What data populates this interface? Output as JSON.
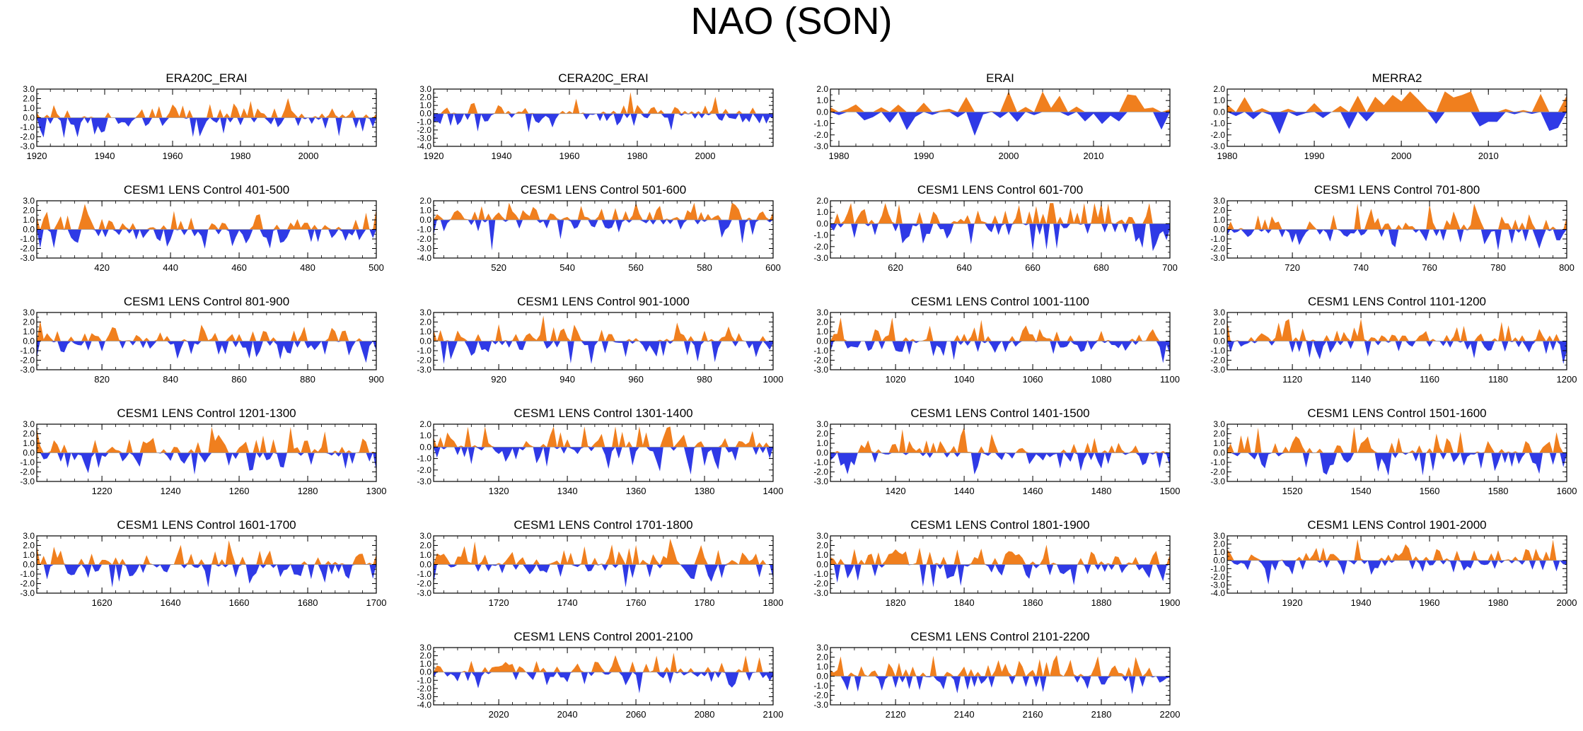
{
  "figure": {
    "title": "NAO (SON)"
  },
  "colors": {
    "positive": "#f07f1e",
    "negative": "#2f3ae6",
    "axis": "#000000",
    "zero_line": "#9a9a9a"
  },
  "chart_data": [
    {
      "type": "area",
      "title": "ERA20C_ERAI",
      "xlim": [
        1920,
        2020
      ],
      "ylim": [
        -3.0,
        3.0
      ],
      "yticks": [
        "3.0",
        "2.0",
        "1.0",
        "0.0",
        "-1.0",
        "-2.0",
        "-3.0"
      ],
      "xticks": [
        "1920",
        "1940",
        "1960",
        "1980",
        "2000"
      ],
      "seed": 11,
      "amp": 1.2
    },
    {
      "type": "area",
      "title": "CERA20C_ERAI",
      "xlim": [
        1920,
        2020
      ],
      "ylim": [
        -4.0,
        3.0
      ],
      "yticks": [
        "3.0",
        "2.0",
        "1.0",
        "0.0",
        "-1.0",
        "-2.0",
        "-3.0",
        "-4.0"
      ],
      "xticks": [
        "1920",
        "1940",
        "1960",
        "1980",
        "2000"
      ],
      "seed": 12,
      "amp": 1.2
    },
    {
      "type": "area",
      "title": "ERAI",
      "xlim": [
        1979,
        2019
      ],
      "ylim": [
        -3.0,
        2.0
      ],
      "yticks": [
        "2.0",
        "1.0",
        "0.0",
        "-1.0",
        "-2.0",
        "-3.0"
      ],
      "xticks": [
        "1980",
        "1990",
        "2000",
        "2010"
      ],
      "seed": 13,
      "amp": 1.3
    },
    {
      "type": "area",
      "title": "MERRA2",
      "xlim": [
        1980,
        2019
      ],
      "ylim": [
        -3.0,
        2.0
      ],
      "yticks": [
        "2.0",
        "1.0",
        "0.0",
        "-1.0",
        "-2.0",
        "-3.0"
      ],
      "xticks": [
        "1980",
        "1990",
        "2000",
        "2010"
      ],
      "seed": 14,
      "amp": 1.3
    },
    {
      "type": "area",
      "title": "CESM1 LENS Control 401-500",
      "xlim": [
        401,
        500
      ],
      "ylim": [
        -3.0,
        3.0
      ],
      "yticks": [
        "3.0",
        "2.0",
        "1.0",
        "0.0",
        "-1.0",
        "-2.0",
        "-3.0"
      ],
      "xticks": [
        "420",
        "440",
        "460",
        "480",
        "500"
      ],
      "seed": 21,
      "amp": 1.3
    },
    {
      "type": "area",
      "title": "CESM1 LENS Control 501-600",
      "xlim": [
        501,
        600
      ],
      "ylim": [
        -4.0,
        2.0
      ],
      "yticks": [
        "2.0",
        "1.0",
        "0.0",
        "-1.0",
        "-2.0",
        "-3.0",
        "-4.0"
      ],
      "xticks": [
        "520",
        "540",
        "560",
        "580",
        "600"
      ],
      "seed": 22,
      "amp": 1.3
    },
    {
      "type": "area",
      "title": "CESM1 LENS Control 601-700",
      "xlim": [
        601,
        700
      ],
      "ylim": [
        -3.0,
        2.0
      ],
      "yticks": [
        "2.0",
        "1.0",
        "0.0",
        "-1.0",
        "-2.0",
        "-3.0"
      ],
      "xticks": [
        "620",
        "640",
        "660",
        "680",
        "700"
      ],
      "seed": 23,
      "amp": 1.3
    },
    {
      "type": "area",
      "title": "CESM1 LENS Control 701-800",
      "xlim": [
        701,
        800
      ],
      "ylim": [
        -3.0,
        3.0
      ],
      "yticks": [
        "3.0",
        "2.0",
        "1.0",
        "0.0",
        "-1.0",
        "-2.0",
        "-3.0"
      ],
      "xticks": [
        "720",
        "740",
        "760",
        "780",
        "800"
      ],
      "seed": 24,
      "amp": 1.3
    },
    {
      "type": "area",
      "title": "CESM1 LENS Control 801-900",
      "xlim": [
        801,
        900
      ],
      "ylim": [
        -3.0,
        3.0
      ],
      "yticks": [
        "3.0",
        "2.0",
        "1.0",
        "0.0",
        "-1.0",
        "-2.0",
        "-3.0"
      ],
      "xticks": [
        "820",
        "840",
        "860",
        "880",
        "900"
      ],
      "seed": 31,
      "amp": 1.3
    },
    {
      "type": "area",
      "title": "CESM1 LENS Control 901-1000",
      "xlim": [
        901,
        1000
      ],
      "ylim": [
        -3.0,
        3.0
      ],
      "yticks": [
        "3.0",
        "2.0",
        "1.0",
        "0.0",
        "-1.0",
        "-2.0",
        "-3.0"
      ],
      "xticks": [
        "920",
        "940",
        "960",
        "980",
        "1000"
      ],
      "seed": 32,
      "amp": 1.3
    },
    {
      "type": "area",
      "title": "CESM1 LENS Control 1001-1100",
      "xlim": [
        1001,
        1100
      ],
      "ylim": [
        -3.0,
        3.0
      ],
      "yticks": [
        "3.0",
        "2.0",
        "1.0",
        "0.0",
        "-1.0",
        "-2.0",
        "-3.0"
      ],
      "xticks": [
        "1020",
        "1040",
        "1060",
        "1080",
        "1100"
      ],
      "seed": 33,
      "amp": 1.3
    },
    {
      "type": "area",
      "title": "CESM1 LENS Control 1101-1200",
      "xlim": [
        1101,
        1200
      ],
      "ylim": [
        -3.0,
        3.0
      ],
      "yticks": [
        "3.0",
        "2.0",
        "1.0",
        "0.0",
        "-1.0",
        "-2.0",
        "-3.0"
      ],
      "xticks": [
        "1120",
        "1140",
        "1160",
        "1180",
        "1200"
      ],
      "seed": 34,
      "amp": 1.3
    },
    {
      "type": "area",
      "title": "CESM1 LENS Control 1201-1300",
      "xlim": [
        1201,
        1300
      ],
      "ylim": [
        -3.0,
        3.0
      ],
      "yticks": [
        "3.0",
        "2.0",
        "1.0",
        "0.0",
        "-1.0",
        "-2.0",
        "-3.0"
      ],
      "xticks": [
        "1220",
        "1240",
        "1260",
        "1280",
        "1300"
      ],
      "seed": 41,
      "amp": 1.3
    },
    {
      "type": "area",
      "title": "CESM1 LENS Control 1301-1400",
      "xlim": [
        1301,
        1400
      ],
      "ylim": [
        -3.0,
        2.0
      ],
      "yticks": [
        "2.0",
        "1.0",
        "0.0",
        "-1.0",
        "-2.0",
        "-3.0"
      ],
      "xticks": [
        "1320",
        "1340",
        "1360",
        "1380",
        "1400"
      ],
      "seed": 42,
      "amp": 1.2
    },
    {
      "type": "area",
      "title": "CESM1 LENS Control 1401-1500",
      "xlim": [
        1401,
        1500
      ],
      "ylim": [
        -3.0,
        3.0
      ],
      "yticks": [
        "3.0",
        "2.0",
        "1.0",
        "0.0",
        "-1.0",
        "-2.0",
        "-3.0"
      ],
      "xticks": [
        "1420",
        "1440",
        "1460",
        "1480",
        "1500"
      ],
      "seed": 43,
      "amp": 1.3
    },
    {
      "type": "area",
      "title": "CESM1 LENS Control 1501-1600",
      "xlim": [
        1501,
        1600
      ],
      "ylim": [
        -3.0,
        3.0
      ],
      "yticks": [
        "3.0",
        "2.0",
        "1.0",
        "0.0",
        "-1.0",
        "-2.0",
        "-3.0"
      ],
      "xticks": [
        "1520",
        "1540",
        "1560",
        "1580",
        "1600"
      ],
      "seed": 44,
      "amp": 1.3
    },
    {
      "type": "area",
      "title": "CESM1 LENS Control 1601-1700",
      "xlim": [
        1601,
        1700
      ],
      "ylim": [
        -3.0,
        3.0
      ],
      "yticks": [
        "3.0",
        "2.0",
        "1.0",
        "0.0",
        "-1.0",
        "-2.0",
        "-3.0"
      ],
      "xticks": [
        "1620",
        "1640",
        "1660",
        "1680",
        "1700"
      ],
      "seed": 51,
      "amp": 1.3
    },
    {
      "type": "area",
      "title": "CESM1 LENS Control 1701-1800",
      "xlim": [
        1701,
        1800
      ],
      "ylim": [
        -3.0,
        3.0
      ],
      "yticks": [
        "3.0",
        "2.0",
        "1.0",
        "0.0",
        "-1.0",
        "-2.0",
        "-3.0"
      ],
      "xticks": [
        "1720",
        "1740",
        "1760",
        "1780",
        "1800"
      ],
      "seed": 52,
      "amp": 1.3
    },
    {
      "type": "area",
      "title": "CESM1 LENS Control 1801-1900",
      "xlim": [
        1801,
        1900
      ],
      "ylim": [
        -3.0,
        3.0
      ],
      "yticks": [
        "3.0",
        "2.0",
        "1.0",
        "0.0",
        "-1.0",
        "-2.0",
        "-3.0"
      ],
      "xticks": [
        "1820",
        "1840",
        "1860",
        "1880",
        "1900"
      ],
      "seed": 53,
      "amp": 1.3
    },
    {
      "type": "area",
      "title": "CESM1 LENS Control 1901-2000",
      "xlim": [
        1901,
        2000
      ],
      "ylim": [
        -4.0,
        3.0
      ],
      "yticks": [
        "3.0",
        "2.0",
        "1.0",
        "0.0",
        "-1.0",
        "-2.0",
        "-3.0",
        "-4.0"
      ],
      "xticks": [
        "1920",
        "1940",
        "1960",
        "1980",
        "2000"
      ],
      "seed": 54,
      "amp": 1.2
    },
    {
      "type": "area",
      "title": "CESM1 LENS Control 2001-2100",
      "xlim": [
        2001,
        2100
      ],
      "ylim": [
        -4.0,
        3.0
      ],
      "yticks": [
        "3.0",
        "2.0",
        "1.0",
        "0.0",
        "-1.0",
        "-2.0",
        "-3.0",
        "-4.0"
      ],
      "xticks": [
        "2020",
        "2040",
        "2060",
        "2080",
        "2100"
      ],
      "seed": 62,
      "amp": 1.2
    },
    {
      "type": "area",
      "title": "CESM1 LENS Control 2101-2200",
      "xlim": [
        2101,
        2200
      ],
      "ylim": [
        -3.0,
        3.0
      ],
      "yticks": [
        "3.0",
        "2.0",
        "1.0",
        "0.0",
        "-1.0",
        "-2.0",
        "-3.0"
      ],
      "xticks": [
        "2120",
        "2140",
        "2160",
        "2180",
        "2200"
      ],
      "seed": 63,
      "amp": 1.3
    }
  ]
}
